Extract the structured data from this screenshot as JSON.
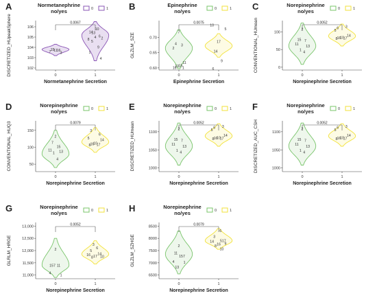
{
  "figure": {
    "colors": {
      "normetanephrine_no": "#8a55b5",
      "normetanephrine_yes": "#8a55b5",
      "green": "#78c46a",
      "yellow": "#f2e23a",
      "pvalue_line": "#555555",
      "text": "#222222",
      "axis": "#444444"
    }
  },
  "chart_data": [
    {
      "panel": "A",
      "type": "violin",
      "legend_title": "Normetanephrine\nno/yes",
      "legend_items": [
        "0",
        "1"
      ],
      "xlabel": "Normetanephrine Secretion",
      "ylabel": "DISCRETIZED_HUpeakSphere",
      "categories": [
        "0",
        "1"
      ],
      "yticks": [
        "102",
        "103",
        "104",
        "105",
        "106"
      ],
      "ylim": [
        101.8,
        106.6
      ],
      "pvalue": "0.0067",
      "violins": [
        {
          "color": "#8a55b5",
          "fill": "#e9dff1",
          "ymin": 103.2,
          "ymax": 104.3,
          "mode": 103.8
        },
        {
          "color": "#8a55b5",
          "fill": "#e9dff1",
          "ymin": 102.7,
          "ymax": 106.5,
          "mode": 105.2
        }
      ],
      "points": [
        {
          "g": 0,
          "y": 103.75,
          "label": "11"
        },
        {
          "g": 0,
          "y": 103.8,
          "label": "15"
        },
        {
          "g": 0,
          "y": 103.75,
          "label": "16"
        },
        {
          "g": 0,
          "y": 103.6,
          "label": "7"
        },
        {
          "g": 0,
          "y": 103.5,
          "label": "3"
        },
        {
          "g": 1,
          "y": 105.45,
          "label": "13"
        },
        {
          "g": 1,
          "y": 105.8,
          "label": "10"
        },
        {
          "g": 1,
          "y": 105.5,
          "label": "14"
        },
        {
          "g": 1,
          "y": 105.1,
          "label": "6"
        },
        {
          "g": 1,
          "y": 104.8,
          "label": "8"
        },
        {
          "g": 1,
          "y": 104.9,
          "label": "2"
        },
        {
          "g": 1,
          "y": 105.0,
          "label": "4"
        },
        {
          "g": 1,
          "y": 104.6,
          "label": "5"
        },
        {
          "g": 1,
          "y": 104.05,
          "label": "9"
        },
        {
          "g": 1,
          "y": 103.55,
          "label": "1"
        },
        {
          "g": 1,
          "y": 102.95,
          "label": "4"
        }
      ]
    },
    {
      "panel": "B",
      "type": "violin",
      "legend_title": "Epinephrine\nno/yes",
      "legend_items": [
        "0",
        "1"
      ],
      "xlabel": "Epinephrine Secretion",
      "ylabel": "GLZLM_SZE",
      "categories": [
        "0",
        "1"
      ],
      "yticks": [
        "0.60",
        "0.65",
        "0.70"
      ],
      "ylim": [
        0.593,
        0.755
      ],
      "pvalue": "0.0075",
      "violins": [
        {
          "color": "#78c46a",
          "fill": "#eef7ec",
          "ymin": 0.597,
          "ymax": 0.725,
          "mode": 0.665
        },
        {
          "color": "#f2e23a",
          "fill": "#fdfbe4",
          "ymin": 0.635,
          "ymax": 0.712,
          "mode": 0.672
        }
      ],
      "points": [
        {
          "g": 0,
          "y": 0.718,
          "label": "7"
        },
        {
          "g": 0,
          "y": 0.68,
          "label": "4"
        },
        {
          "g": 0,
          "y": 0.675,
          "label": "3"
        },
        {
          "g": 0,
          "y": 0.665,
          "label": "2"
        },
        {
          "g": 0,
          "y": 0.618,
          "label": "11"
        },
        {
          "g": 0,
          "y": 0.607,
          "label": "13"
        },
        {
          "g": 0,
          "y": 0.608,
          "label": "15"
        },
        {
          "g": 0,
          "y": 0.601,
          "label": "16"
        },
        {
          "g": 0,
          "y": 0.601,
          "label": "1"
        },
        {
          "g": 1,
          "y": 0.74,
          "label": "10"
        },
        {
          "g": 1,
          "y": 0.728,
          "label": "5"
        },
        {
          "g": 1,
          "y": 0.686,
          "label": "17"
        },
        {
          "g": 1,
          "y": 0.655,
          "label": "14"
        },
        {
          "g": 1,
          "y": 0.623,
          "label": "9"
        },
        {
          "g": 1,
          "y": 0.597,
          "label": "6"
        }
      ]
    },
    {
      "panel": "C",
      "type": "violin",
      "legend_title": "Norepinephrine\nno/yes",
      "legend_items": [
        "0",
        "1"
      ],
      "xlabel": "Norepinephrine Secretion",
      "ylabel": "CONVENTIONAL_HUmean",
      "categories": [
        "0",
        "1"
      ],
      "yticks": [
        "0",
        "50",
        "100"
      ],
      "ylim": [
        -8,
        132
      ],
      "pvalue": "0.0052",
      "violins": [
        {
          "color": "#78c46a",
          "fill": "#eef7ec",
          "ymin": 8,
          "ymax": 125,
          "mode": 60
        },
        {
          "color": "#f2e23a",
          "fill": "#fdfbe4",
          "ymin": 60,
          "ymax": 122,
          "mode": 88
        }
      ],
      "points": [
        {
          "g": 0,
          "y": 108,
          "label": "2"
        },
        {
          "g": 0,
          "y": 79,
          "label": "15"
        },
        {
          "g": 0,
          "y": 76,
          "label": "7"
        },
        {
          "g": 0,
          "y": 66,
          "label": "11"
        },
        {
          "g": 0,
          "y": 60,
          "label": "13"
        },
        {
          "g": 0,
          "y": 49,
          "label": "1"
        },
        {
          "g": 0,
          "y": 44,
          "label": "4"
        },
        {
          "g": 1,
          "y": 112,
          "label": "6"
        },
        {
          "g": 1,
          "y": 115,
          "label": "3"
        },
        {
          "g": 1,
          "y": 105,
          "label": "5"
        },
        {
          "g": 1,
          "y": 90,
          "label": "14"
        },
        {
          "g": 1,
          "y": 84,
          "label": "10"
        },
        {
          "g": 1,
          "y": 83,
          "label": "16"
        },
        {
          "g": 1,
          "y": 82,
          "label": "17"
        },
        {
          "g": 1,
          "y": 81,
          "label": "8"
        }
      ]
    },
    {
      "panel": "D",
      "type": "violin",
      "legend_title": "Norepinephrine\nno/yes",
      "legend_items": [
        "0",
        "1"
      ],
      "xlabel": "Norepinephrine Secretion",
      "ylabel": "CONVENTIONAL_HUQ3",
      "categories": [
        "0",
        "1"
      ],
      "yticks": [
        "50",
        "100",
        "150"
      ],
      "ylim": [
        28,
        178
      ],
      "pvalue": "0.0079",
      "violins": [
        {
          "color": "#78c46a",
          "fill": "#eef7ec",
          "ymin": 40,
          "ymax": 150,
          "mode": 80
        },
        {
          "color": "#f2e23a",
          "fill": "#fdfbe4",
          "ymin": 85,
          "ymax": 158,
          "mode": 115
        }
      ],
      "points": [
        {
          "g": 0,
          "y": 132,
          "label": "2"
        },
        {
          "g": 0,
          "y": 114,
          "label": "7"
        },
        {
          "g": 0,
          "y": 102,
          "label": "15"
        },
        {
          "g": 0,
          "y": 92,
          "label": "11"
        },
        {
          "g": 0,
          "y": 88,
          "label": "13"
        },
        {
          "g": 0,
          "y": 84,
          "label": "1"
        },
        {
          "g": 0,
          "y": 66,
          "label": "4"
        },
        {
          "g": 1,
          "y": 150,
          "label": "3"
        },
        {
          "g": 1,
          "y": 138,
          "label": "6"
        },
        {
          "g": 1,
          "y": 127,
          "label": "5"
        },
        {
          "g": 1,
          "y": 122,
          "label": "14"
        },
        {
          "g": 1,
          "y": 112,
          "label": "10"
        },
        {
          "g": 1,
          "y": 110,
          "label": "16"
        },
        {
          "g": 1,
          "y": 108,
          "label": "17"
        },
        {
          "g": 1,
          "y": 107,
          "label": "8"
        }
      ]
    },
    {
      "panel": "E",
      "type": "violin",
      "legend_title": "Norepinephrine\nno/yes",
      "legend_items": [
        "0",
        "1"
      ],
      "xlabel": "Norepinephrine Secretion",
      "ylabel": "DISCRETIZED_HUmean",
      "categories": [
        "0",
        "1"
      ],
      "yticks": [
        "1000",
        "1050",
        "1100"
      ],
      "ylim": [
        990,
        1130
      ],
      "pvalue": "0.0052",
      "violins": [
        {
          "color": "#78c46a",
          "fill": "#eef7ec",
          "ymin": 1008,
          "ymax": 1124,
          "mode": 1060
        },
        {
          "color": "#f2e23a",
          "fill": "#fdfbe4",
          "ymin": 1060,
          "ymax": 1122,
          "mode": 1088
        }
      ],
      "points": [
        {
          "g": 0,
          "y": 1108,
          "label": "2"
        },
        {
          "g": 0,
          "y": 1079,
          "label": "15"
        },
        {
          "g": 0,
          "y": 1076,
          "label": "7"
        },
        {
          "g": 0,
          "y": 1066,
          "label": "11"
        },
        {
          "g": 0,
          "y": 1060,
          "label": "13"
        },
        {
          "g": 0,
          "y": 1049,
          "label": "1"
        },
        {
          "g": 0,
          "y": 1044,
          "label": "4"
        },
        {
          "g": 1,
          "y": 1112,
          "label": "6"
        },
        {
          "g": 1,
          "y": 1115,
          "label": "3"
        },
        {
          "g": 1,
          "y": 1105,
          "label": "5"
        },
        {
          "g": 1,
          "y": 1090,
          "label": "14"
        },
        {
          "g": 1,
          "y": 1084,
          "label": "10"
        },
        {
          "g": 1,
          "y": 1083,
          "label": "16"
        },
        {
          "g": 1,
          "y": 1082,
          "label": "17"
        },
        {
          "g": 1,
          "y": 1081,
          "label": "8"
        }
      ]
    },
    {
      "panel": "F",
      "type": "violin",
      "legend_title": "Norepinephrine\nno/yes",
      "legend_items": [
        "0",
        "1"
      ],
      "xlabel": "Norepinephrine Secretion",
      "ylabel": "DISCRETIZED_AUC_CSH",
      "categories": [
        "0",
        "1"
      ],
      "yticks": [
        "1000",
        "1050",
        "1100"
      ],
      "ylim": [
        990,
        1130
      ],
      "pvalue": "0.0052",
      "violins": [
        {
          "color": "#78c46a",
          "fill": "#eef7ec",
          "ymin": 1008,
          "ymax": 1124,
          "mode": 1060
        },
        {
          "color": "#f2e23a",
          "fill": "#fdfbe4",
          "ymin": 1060,
          "ymax": 1122,
          "mode": 1088
        }
      ],
      "points": [
        {
          "g": 0,
          "y": 1108,
          "label": "2"
        },
        {
          "g": 0,
          "y": 1079,
          "label": "15"
        },
        {
          "g": 0,
          "y": 1076,
          "label": "7"
        },
        {
          "g": 0,
          "y": 1066,
          "label": "11"
        },
        {
          "g": 0,
          "y": 1060,
          "label": "13"
        },
        {
          "g": 0,
          "y": 1049,
          "label": "1"
        },
        {
          "g": 0,
          "y": 1044,
          "label": "4"
        },
        {
          "g": 1,
          "y": 1112,
          "label": "6"
        },
        {
          "g": 1,
          "y": 1115,
          "label": "3"
        },
        {
          "g": 1,
          "y": 1105,
          "label": "5"
        },
        {
          "g": 1,
          "y": 1090,
          "label": "14"
        },
        {
          "g": 1,
          "y": 1084,
          "label": "10"
        },
        {
          "g": 1,
          "y": 1083,
          "label": "16"
        },
        {
          "g": 1,
          "y": 1082,
          "label": "17"
        },
        {
          "g": 1,
          "y": 1081,
          "label": "8"
        }
      ]
    },
    {
      "panel": "G",
      "type": "violin",
      "legend_title": "Norepinephrine\nno/yes",
      "legend_items": [
        "0",
        "1"
      ],
      "xlabel": "Norepinephrine  Secretion",
      "ylabel": "GLRLM_HRGE",
      "categories": [
        "0",
        "1"
      ],
      "yticks": [
        "11,000",
        "11,500",
        "12,000",
        "12,500",
        "13,000"
      ],
      "ylim": [
        10850,
        13150
      ],
      "pvalue": "0.0052",
      "violins": [
        {
          "color": "#78c46a",
          "fill": "#eef7ec",
          "ymin": 10900,
          "ymax": 12500,
          "mode": 11400
        },
        {
          "color": "#f2e23a",
          "fill": "#fdfbe4",
          "ymin": 11450,
          "ymax": 12400,
          "mode": 11850
        }
      ],
      "points": [
        {
          "g": 0,
          "y": 12050,
          "label": "2"
        },
        {
          "g": 0,
          "y": 11400,
          "label": "157"
        },
        {
          "g": 0,
          "y": 11390,
          "label": "11"
        },
        {
          "g": 0,
          "y": 11090,
          "label": "4"
        },
        {
          "g": 0,
          "y": 11000,
          "label": "1"
        },
        {
          "g": 1,
          "y": 12250,
          "label": "3"
        },
        {
          "g": 1,
          "y": 12110,
          "label": "6"
        },
        {
          "g": 1,
          "y": 12000,
          "label": "5"
        },
        {
          "g": 1,
          "y": 11870,
          "label": "14"
        },
        {
          "g": 1,
          "y": 11830,
          "label": "16"
        },
        {
          "g": 1,
          "y": 11760,
          "label": "10"
        },
        {
          "g": 1,
          "y": 11780,
          "label": "17"
        },
        {
          "g": 1,
          "y": 11730,
          "label": "8"
        }
      ]
    },
    {
      "panel": "H",
      "type": "violin",
      "legend_title": "Norepinephrine\nno/yes",
      "legend_items": [
        "0",
        "1"
      ],
      "xlabel": "Norepinephrine  Secretion",
      "ylabel": "GLZLM_SZHGE",
      "categories": [
        "0",
        "1"
      ],
      "yticks": [
        "6500",
        "7000",
        "7500",
        "8000",
        "8500"
      ],
      "ylim": [
        6350,
        8650
      ],
      "pvalue": "0.0079",
      "violins": [
        {
          "color": "#78c46a",
          "fill": "#eef7ec",
          "ymin": 6550,
          "ymax": 8300,
          "mode": 7350
        },
        {
          "color": "#f2e23a",
          "fill": "#fdfbe4",
          "ymin": 7550,
          "ymax": 8400,
          "mode": 7900
        }
      ],
      "points": [
        {
          "g": 0,
          "y": 7700,
          "label": "2"
        },
        {
          "g": 0,
          "y": 7400,
          "label": "11"
        },
        {
          "g": 0,
          "y": 7270,
          "label": "157"
        },
        {
          "g": 0,
          "y": 7050,
          "label": "4"
        },
        {
          "g": 0,
          "y": 7020,
          "label": "1"
        },
        {
          "g": 0,
          "y": 6820,
          "label": "13"
        },
        {
          "g": 1,
          "y": 8320,
          "label": "6"
        },
        {
          "g": 1,
          "y": 8080,
          "label": "3"
        },
        {
          "g": 1,
          "y": 7900,
          "label": "517"
        },
        {
          "g": 1,
          "y": 7880,
          "label": "14"
        },
        {
          "g": 1,
          "y": 7790,
          "label": "9"
        },
        {
          "g": 1,
          "y": 7770,
          "label": "16"
        },
        {
          "g": 1,
          "y": 7700,
          "label": "8"
        },
        {
          "g": 1,
          "y": 7570,
          "label": "10"
        }
      ]
    }
  ]
}
